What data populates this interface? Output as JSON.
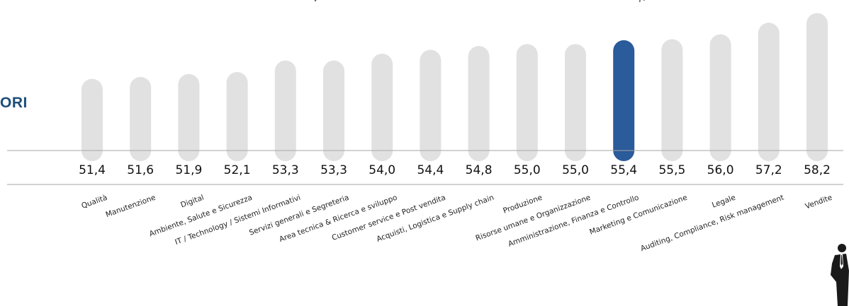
{
  "side_title": "ORI",
  "top_fragment": "Au",
  "colors": {
    "bar_default": "#e1e1e1",
    "bar_highlight": "#2a5b9a",
    "axis_line": "#a6a6a6",
    "value_text": "#111111",
    "category_text": "#222222",
    "title_text": "#1e4e79"
  },
  "chart_data": {
    "type": "bar",
    "categories": [
      "Qualità",
      "Manutenzione",
      "Digital",
      "Ambiente, Salute e Sicurezza",
      "IT / Technology / Sistemi Informativi",
      "Servizi generali e Segreteria",
      "Area tecnica & Ricerca e sviluppo",
      "Customer service e Post vendita",
      "Acquisti, Logistica e Supply chain",
      "Produzione",
      "Risorse umane e Organizzazione",
      "Amministrazione, Finanza e Controllo",
      "Marketing e Comunicazione",
      "Legale",
      "Auditing, Compliance, Risk management",
      "Vendite"
    ],
    "values": [
      51.4,
      51.6,
      51.9,
      52.1,
      53.3,
      53.3,
      54.0,
      54.4,
      54.8,
      55.0,
      55.0,
      55.4,
      55.5,
      56.0,
      57.2,
      58.2
    ],
    "value_labels": [
      "51,4",
      "51,6",
      "51,9",
      "52,1",
      "53,3",
      "53,3",
      "54,0",
      "54,4",
      "54,8",
      "55,0",
      "55,0",
      "55,4",
      "55,5",
      "56,0",
      "57,2",
      "58,2"
    ],
    "highlight_category": "Amministrazione, Finanza e Controllo",
    "ylim": [
      44,
      58.6
    ],
    "title": "",
    "xlabel": "",
    "ylabel": "",
    "grid": false,
    "legend": "none"
  }
}
